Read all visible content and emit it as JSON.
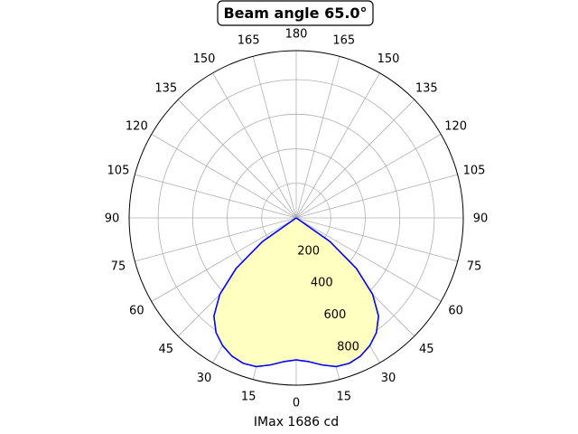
{
  "chart_data": {
    "type": "line",
    "projection": "polar",
    "title": "Beam angle 65.0°",
    "xlabel": "IMax 1686 cd",
    "angle_ticks": [
      {
        "angle": 0,
        "label": "0"
      },
      {
        "angle": 15,
        "label": "15"
      },
      {
        "angle": 30,
        "label": "30"
      },
      {
        "angle": 45,
        "label": "45"
      },
      {
        "angle": 60,
        "label": "60"
      },
      {
        "angle": 75,
        "label": "75"
      },
      {
        "angle": 90,
        "label": "90"
      },
      {
        "angle": 105,
        "label": "105"
      },
      {
        "angle": 120,
        "label": "120"
      },
      {
        "angle": 135,
        "label": "135"
      },
      {
        "angle": 150,
        "label": "150"
      },
      {
        "angle": 165,
        "label": "165"
      },
      {
        "angle": 180,
        "label": "180"
      },
      {
        "angle": -165,
        "label": "165"
      },
      {
        "angle": -150,
        "label": "150"
      },
      {
        "angle": -135,
        "label": "135"
      },
      {
        "angle": -120,
        "label": "120"
      },
      {
        "angle": -105,
        "label": "105"
      },
      {
        "angle": -90,
        "label": "90"
      },
      {
        "angle": -75,
        "label": "75"
      },
      {
        "angle": -60,
        "label": "60"
      },
      {
        "angle": -45,
        "label": "45"
      },
      {
        "angle": -30,
        "label": "30"
      },
      {
        "angle": -15,
        "label": "15"
      }
    ],
    "radial_ticks": [
      200,
      400,
      600,
      800
    ],
    "rlim": [
      0,
      968
    ],
    "grid": true,
    "series": [
      {
        "color": "#0000ff",
        "fill": "#ffffc0",
        "angles": [
          -180,
          -90,
          -60,
          -55,
          -50,
          -45,
          -40,
          -35,
          -30,
          -25,
          -20,
          -15,
          -10,
          -5,
          0,
          5,
          10,
          15,
          20,
          25,
          30,
          35,
          40,
          45,
          50,
          55,
          60,
          90,
          180
        ],
        "values": [
          0,
          0,
          0,
          238,
          455,
          626,
          742,
          810,
          853,
          882,
          896,
          891,
          864,
          835,
          822,
          835,
          864,
          891,
          896,
          882,
          853,
          810,
          742,
          626,
          455,
          238,
          0,
          0,
          0
        ]
      }
    ]
  }
}
